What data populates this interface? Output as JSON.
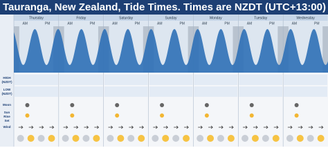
{
  "header": {
    "title": "Tauranga, New Zealand, Tide Times. Times are NZDT (UTC+13:00)"
  },
  "days": [
    "Thursday",
    "Friday",
    "Saturday",
    "Sunday",
    "Monday",
    "Tuesday",
    "Wednesday"
  ],
  "labels": {
    "am": "AM",
    "pm": "PM",
    "high": "HIGH",
    "low": "LOW",
    "zone": "(NZDT)",
    "moon": "Moon",
    "sun": "Sun",
    "rise": "Rise",
    "set": "Set",
    "wind": "Wind"
  }
}
